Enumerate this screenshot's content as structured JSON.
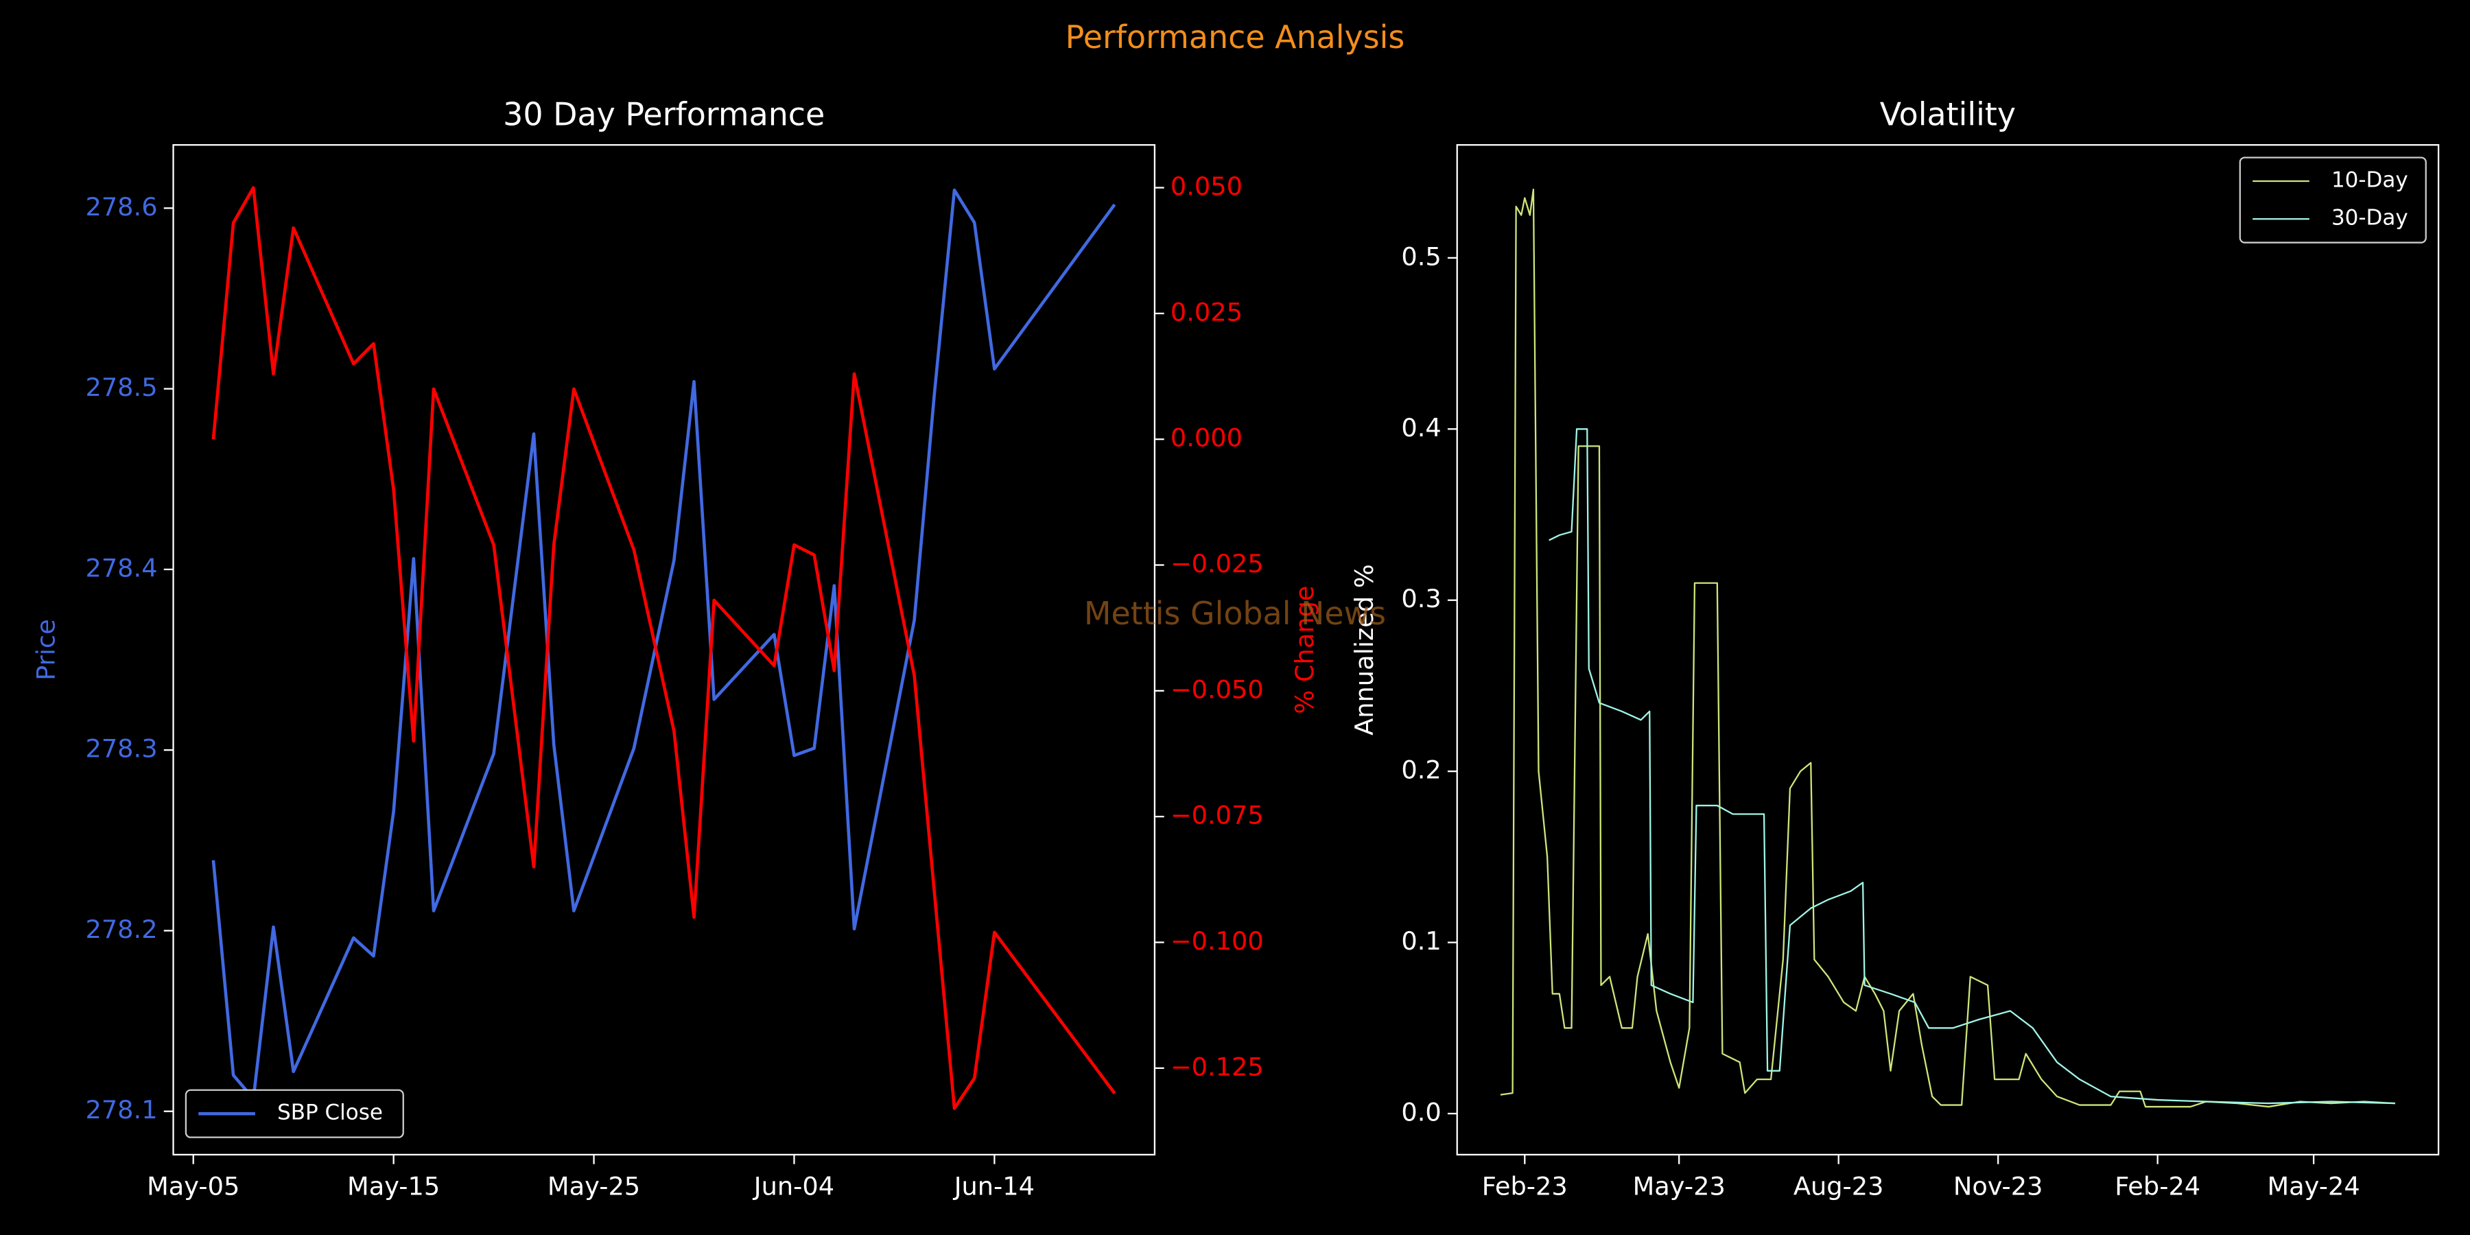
{
  "title": "Performance Analysis",
  "watermark": "Mettis Global News",
  "chart_data": [
    {
      "type": "line",
      "title": "30 Day Performance",
      "y_label": "Price",
      "y2_label": "% Change",
      "y_color": "#4169e1",
      "y2_color": "#ff0000",
      "legend": "lower left",
      "x": [
        "May-06",
        "May-07",
        "May-08",
        "May-09",
        "May-10",
        "May-13",
        "May-14",
        "May-15",
        "May-16",
        "May-17",
        "May-20",
        "May-22",
        "May-23",
        "May-24",
        "May-27",
        "May-29",
        "May-30",
        "May-31",
        "Jun-03",
        "Jun-04",
        "Jun-05",
        "Jun-06",
        "Jun-07",
        "Jun-10",
        "Jun-11",
        "Jun-12",
        "Jun-13",
        "Jun-14",
        "Jun-20"
      ],
      "xlim": [
        "May-04",
        "Jun-22"
      ],
      "xticks": [
        "May-05",
        "May-15",
        "May-25",
        "Jun-04",
        "Jun-14"
      ],
      "ylim": [
        278.076,
        278.635
      ],
      "yticks": [
        278.1,
        278.2,
        278.3,
        278.4,
        278.5,
        278.6
      ],
      "y2lim": [
        -0.1422,
        0.0585
      ],
      "y2ticks": [
        {
          "value": 0.05,
          "label": "0.050"
        },
        {
          "value": 0.025,
          "label": "0.025"
        },
        {
          "value": 0,
          "label": "0.000"
        },
        {
          "value": -0.025,
          "label": "−0.025"
        },
        {
          "value": -0.05,
          "label": "−0.050"
        },
        {
          "value": -0.075,
          "label": "−0.075"
        },
        {
          "value": -0.1,
          "label": "−0.100"
        },
        {
          "value": -0.125,
          "label": "−0.125"
        }
      ],
      "series": [
        {
          "name": "SBP Close",
          "color": "#4169e1",
          "values": [
            278.239,
            278.12,
            278.107,
            278.202,
            278.122,
            278.196,
            278.186,
            278.266,
            278.406,
            278.211,
            278.298,
            278.475,
            278.303,
            278.211,
            278.301,
            278.405,
            278.504,
            278.328,
            278.364,
            278.297,
            278.301,
            278.391,
            278.201,
            278.372,
            278.497,
            278.61,
            278.592,
            278.511,
            278.602
          ]
        },
        {
          "color": "#ff0000",
          "axis": "y2",
          "values": [
            0.0,
            0.043,
            0.05,
            0.013,
            0.042,
            0.015,
            0.019,
            -0.01,
            -0.06,
            0.01,
            -0.021,
            -0.085,
            -0.021,
            0.01,
            -0.022,
            -0.058,
            -0.095,
            -0.032,
            -0.045,
            -0.021,
            -0.023,
            -0.046,
            0.013,
            -0.047,
            -0.09,
            -0.133,
            -0.127,
            -0.098,
            -0.13
          ]
        }
      ]
    },
    {
      "type": "line",
      "title": "Volatility",
      "y_label": "Annualized %",
      "legend": "upper right",
      "xlim": [
        "2022-12-24",
        "2024-07-12"
      ],
      "xticks": [
        {
          "value": "2023-02-01",
          "label": "Feb-23"
        },
        {
          "value": "2023-05-01",
          "label": "May-23"
        },
        {
          "value": "2023-08-01",
          "label": "Aug-23"
        },
        {
          "value": "2023-11-01",
          "label": "Nov-23"
        },
        {
          "value": "2024-02-01",
          "label": "Feb-24"
        },
        {
          "value": "2024-05-01",
          "label": "May-24"
        }
      ],
      "ylim": [
        -0.024,
        0.566
      ],
      "yticks": [
        {
          "value": 0,
          "label": "0.0"
        },
        0.1,
        0.2,
        0.3,
        0.4,
        0.5
      ],
      "series": [
        {
          "name": "10-Day",
          "color": "#cde57a",
          "x": [
            "2023-01-18",
            "2023-01-25",
            "2023-01-27",
            "2023-01-30",
            "2023-02-01",
            "2023-02-04",
            "2023-02-06",
            "2023-02-09",
            "2023-02-14",
            "2023-02-17",
            "2023-02-21",
            "2023-02-24",
            "2023-02-28",
            "2023-03-04",
            "2023-03-16",
            "2023-03-17",
            "2023-03-22",
            "2023-03-29",
            "2023-04-04",
            "2023-04-07",
            "2023-04-13",
            "2023-04-18",
            "2023-04-26",
            "2023-05-01",
            "2023-05-07",
            "2023-05-10",
            "2023-05-23",
            "2023-05-26",
            "2023-06-05",
            "2023-06-08",
            "2023-06-15",
            "2023-06-23",
            "2023-06-30",
            "2023-07-04",
            "2023-07-10",
            "2023-07-16",
            "2023-07-18",
            "2023-07-26",
            "2023-08-04",
            "2023-08-11",
            "2023-08-16",
            "2023-08-22",
            "2023-08-27",
            "2023-08-31",
            "2023-09-05",
            "2023-09-13",
            "2023-09-18",
            "2023-09-24",
            "2023-09-29",
            "2023-10-11",
            "2023-10-16",
            "2023-10-26",
            "2023-10-30",
            "2023-11-13",
            "2023-11-17",
            "2023-11-26",
            "2023-12-05",
            "2023-12-18",
            "2024-01-05",
            "2024-01-10",
            "2024-01-22",
            "2024-01-25",
            "2024-02-20",
            "2024-02-29",
            "2024-03-18",
            "2024-04-05",
            "2024-04-23",
            "2024-05-11",
            "2024-05-30",
            "2024-06-17"
          ],
          "values": [
            0.011,
            0.012,
            0.53,
            0.525,
            0.535,
            0.525,
            0.54,
            0.2,
            0.15,
            0.07,
            0.07,
            0.05,
            0.05,
            0.39,
            0.39,
            0.075,
            0.08,
            0.05,
            0.05,
            0.08,
            0.105,
            0.06,
            0.03,
            0.015,
            0.05,
            0.31,
            0.31,
            0.035,
            0.03,
            0.012,
            0.02,
            0.02,
            0.09,
            0.19,
            0.2,
            0.205,
            0.09,
            0.08,
            0.065,
            0.06,
            0.08,
            0.07,
            0.06,
            0.025,
            0.06,
            0.07,
            0.04,
            0.01,
            0.005,
            0.005,
            0.08,
            0.075,
            0.02,
            0.02,
            0.035,
            0.02,
            0.01,
            0.005,
            0.005,
            0.013,
            0.013,
            0.004,
            0.004,
            0.007,
            0.006,
            0.004,
            0.007,
            0.006,
            0.007,
            0.006
          ]
        },
        {
          "name": "30-Day",
          "color": "#9ff5e6",
          "x": [
            "2023-02-15",
            "2023-02-21",
            "2023-02-28",
            "2023-03-03",
            "2023-03-09",
            "2023-03-10",
            "2023-03-16",
            "2023-03-29",
            "2023-04-09",
            "2023-04-14",
            "2023-04-15",
            "2023-04-26",
            "2023-05-09",
            "2023-05-11",
            "2023-05-23",
            "2023-06-01",
            "2023-06-19",
            "2023-06-21",
            "2023-06-28",
            "2023-07-04",
            "2023-07-16",
            "2023-07-26",
            "2023-08-08",
            "2023-08-15",
            "2023-08-16",
            "2023-08-31",
            "2023-09-14",
            "2023-09-22",
            "2023-10-06",
            "2023-10-21",
            "2023-11-08",
            "2023-11-21",
            "2023-12-05",
            "2023-12-18",
            "2024-01-05",
            "2024-02-01",
            "2024-02-29",
            "2024-04-05",
            "2024-05-11",
            "2024-06-17"
          ],
          "values": [
            0.335,
            0.338,
            0.34,
            0.4,
            0.4,
            0.26,
            0.24,
            0.235,
            0.23,
            0.235,
            0.075,
            0.07,
            0.065,
            0.18,
            0.18,
            0.175,
            0.175,
            0.025,
            0.025,
            0.11,
            0.12,
            0.125,
            0.13,
            0.135,
            0.075,
            0.07,
            0.065,
            0.05,
            0.05,
            0.055,
            0.06,
            0.05,
            0.03,
            0.02,
            0.01,
            0.008,
            0.007,
            0.006,
            0.007,
            0.006
          ]
        }
      ]
    }
  ]
}
